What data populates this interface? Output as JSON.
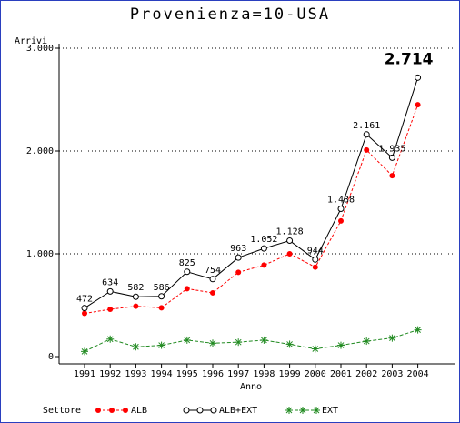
{
  "chart_data": {
    "type": "line",
    "title": "Provenienza=10-USA",
    "y_label": "Arrivi",
    "x_label": "Anno",
    "legend_title": "Settore",
    "categories": [
      "1991",
      "1992",
      "1993",
      "1994",
      "1995",
      "1996",
      "1997",
      "1998",
      "1999",
      "2000",
      "2001",
      "2002",
      "2003",
      "2004"
    ],
    "series": [
      {
        "name": "ALB",
        "color": "#ff0000",
        "values": [
          420,
          460,
          490,
          475,
          660,
          620,
          820,
          890,
          1000,
          870,
          1320,
          2010,
          1760,
          2450
        ]
      },
      {
        "name": "ALB+EXT",
        "color": "#000000",
        "values": [
          472,
          634,
          582,
          586,
          825,
          754,
          963,
          1052,
          1128,
          944,
          1438,
          2161,
          1935,
          2714
        ],
        "value_labels": [
          "472",
          "634",
          "582",
          "586",
          "825",
          "754",
          "963",
          "1.052",
          "1.128",
          "944",
          "1.438",
          "2.161",
          "1.935",
          "2.714"
        ]
      },
      {
        "name": "EXT",
        "color": "#228b22",
        "values": [
          50,
          170,
          95,
          110,
          160,
          130,
          140,
          160,
          120,
          75,
          110,
          150,
          180,
          260
        ]
      }
    ],
    "ylim": [
      0,
      3000
    ],
    "yticks": [
      0,
      {
        "value": 1000,
        "label": "1.000"
      },
      {
        "value": 2000,
        "label": "2.000"
      },
      {
        "value": 3000,
        "label": "3.000"
      }
    ],
    "grid": true
  }
}
